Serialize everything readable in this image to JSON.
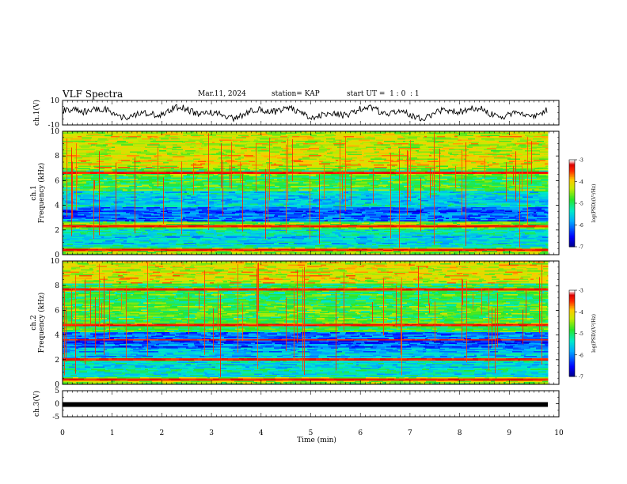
{
  "header": {
    "title": "VLF Spectra",
    "date": "Mar.11, 2024",
    "station": "station= KAP",
    "start_ut": "start UT =  1 : 0  : 1"
  },
  "chart_data": [
    {
      "type": "line",
      "name": "ch1-waveform",
      "ylabel": "ch.1(V)",
      "ylim": [
        -10,
        10
      ],
      "yticks": [
        "10",
        "-10"
      ],
      "xlim": [
        0,
        10
      ],
      "x_end": 9.83
    },
    {
      "type": "heatmap",
      "name": "ch1-spectrogram",
      "ylabel": "ch.1\nFrequency (kHz)",
      "ylim": [
        0,
        10
      ],
      "yticks": [
        "0",
        "2",
        "4",
        "6",
        "8",
        "10"
      ],
      "xlim": [
        0,
        10
      ],
      "x_end": 9.83,
      "colorbar": {
        "label": "log(PSD)(V²/Hz)",
        "range": [
          -7,
          -3
        ],
        "ticks": [
          "-3",
          "-4",
          "-5",
          "-6",
          "-7"
        ]
      },
      "strong_lines_khz": [
        6.6,
        2.3,
        0.35
      ]
    },
    {
      "type": "heatmap",
      "name": "ch2-spectrogram",
      "ylabel": "ch.2\nFrequency (kHz)",
      "ylim": [
        0,
        10
      ],
      "yticks": [
        "0",
        "2",
        "4",
        "6",
        "8",
        "10"
      ],
      "xlim": [
        0,
        10
      ],
      "x_end": 9.83,
      "colorbar": {
        "label": "log(PSD)(V²/Hz)",
        "range": [
          -7,
          -3
        ],
        "ticks": [
          "-3",
          "-4",
          "-5",
          "-6",
          "-7"
        ]
      },
      "strong_lines_khz": [
        7.7,
        4.8,
        3.6,
        2.0,
        0.35
      ]
    },
    {
      "type": "line",
      "name": "ch3-waveform",
      "ylabel": "ch.3(V)",
      "ylim": [
        -5,
        5
      ],
      "yticks": [
        "5",
        "0",
        "-5"
      ],
      "xlim": [
        0,
        10
      ],
      "x_end": 9.83,
      "level_v": -0.3
    }
  ],
  "xaxis": {
    "label": "Time (min)",
    "ticks": [
      "0",
      "1",
      "2",
      "3",
      "4",
      "5",
      "6",
      "7",
      "8",
      "9",
      "10"
    ]
  },
  "colors": {
    "axis": "#000000",
    "background": "#ffffff"
  }
}
